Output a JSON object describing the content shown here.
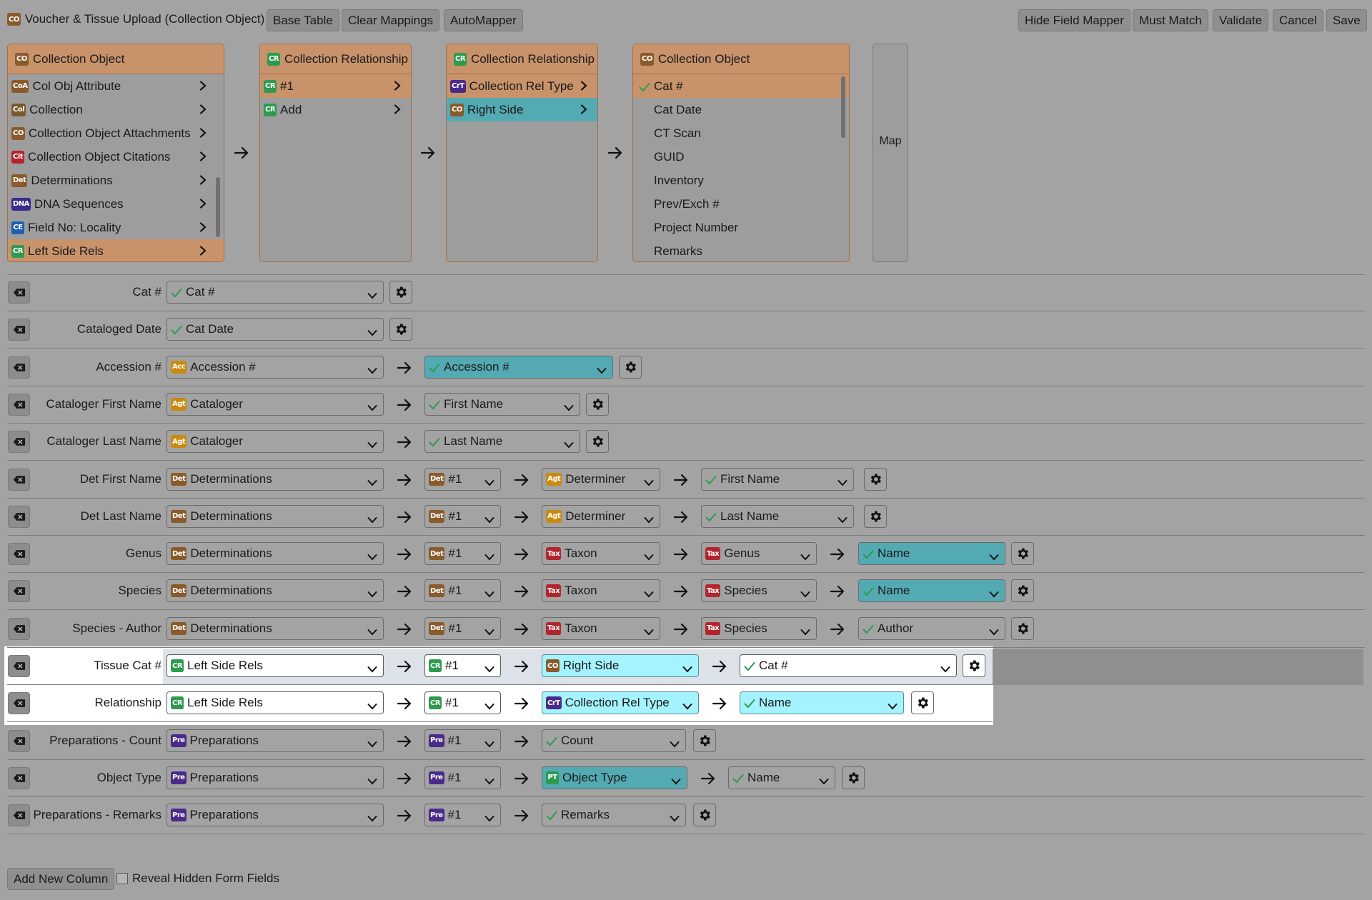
{
  "header": {
    "title": "Voucher & Tissue Upload (Collection Object)",
    "title_badge": "CO",
    "buttons_left": [
      "Base Table",
      "Clear Mappings",
      "AutoMapper"
    ],
    "buttons_right": [
      "Hide Field Mapper",
      "Must Match",
      "Validate",
      "Cancel",
      "Save"
    ]
  },
  "panels": [
    {
      "title": "Collection Object",
      "badge": "CO",
      "items": [
        {
          "badge": "CoA",
          "label": "Col Obj Attribute"
        },
        {
          "badge": "Col",
          "label": "Collection"
        },
        {
          "badge": "CO",
          "label": "Collection Object Attachments"
        },
        {
          "badge": "Cit",
          "label": "Collection Object Citations"
        },
        {
          "badge": "Det",
          "label": "Determinations"
        },
        {
          "badge": "DNA",
          "label": "DNA Sequences"
        },
        {
          "badge": "CE",
          "label": "Field No: Locality"
        },
        {
          "badge": "CR",
          "label": "Left Side Rels"
        }
      ]
    },
    {
      "title": "Collection Relationship",
      "badge": "CR",
      "items": [
        {
          "badge": "CR",
          "label": "#1"
        },
        {
          "badge": "CR",
          "label": "Add"
        }
      ]
    },
    {
      "title": "Collection Relationship",
      "badge": "CR",
      "items": [
        {
          "badge": "CrT",
          "label": "Collection Rel Type"
        },
        {
          "badge": "CO",
          "label": "Right Side"
        }
      ]
    },
    {
      "title": "Collection Object",
      "badge": "CO",
      "items": [
        {
          "label": "Cat #"
        },
        {
          "label": "Cat Date"
        },
        {
          "label": "CT Scan"
        },
        {
          "label": "GUID"
        },
        {
          "label": "Inventory"
        },
        {
          "label": "Prev/Exch #"
        },
        {
          "label": "Project Number"
        },
        {
          "label": "Remarks"
        }
      ]
    }
  ],
  "map_button": "Map",
  "rows": [
    {
      "label": "Cat #",
      "cells": [
        {
          "badge": "",
          "text": "Cat #",
          "check": true
        }
      ]
    },
    {
      "label": "Cataloged Date",
      "cells": [
        {
          "badge": "",
          "text": "Cat Date",
          "check": true
        }
      ]
    },
    {
      "label": "Accession #",
      "cells": [
        {
          "badge": "Acc",
          "text": "Accession #"
        },
        {
          "text": "Accession #",
          "check": true
        }
      ]
    },
    {
      "label": "Cataloger First Name",
      "cells": [
        {
          "badge": "Agt",
          "text": "Cataloger"
        },
        {
          "text": "First Name",
          "check": true
        }
      ]
    },
    {
      "label": "Cataloger Last Name",
      "cells": [
        {
          "badge": "Agt",
          "text": "Cataloger"
        },
        {
          "text": "Last Name",
          "check": true
        }
      ]
    },
    {
      "label": "Det First Name",
      "cells": [
        {
          "badge": "Det",
          "text": "Determinations"
        },
        {
          "badge": "Det",
          "text": "#1"
        },
        {
          "badge": "Agt",
          "text": "Determiner"
        },
        {
          "text": "First Name",
          "check": true
        }
      ]
    },
    {
      "label": "Det Last Name",
      "cells": [
        {
          "badge": "Det",
          "text": "Determinations"
        },
        {
          "badge": "Det",
          "text": "#1"
        },
        {
          "badge": "Agt",
          "text": "Determiner"
        },
        {
          "text": "Last Name",
          "check": true
        }
      ]
    },
    {
      "label": "Genus",
      "cells": [
        {
          "badge": "Det",
          "text": "Determinations"
        },
        {
          "badge": "Det",
          "text": "#1"
        },
        {
          "badge": "Tax",
          "text": "Taxon"
        },
        {
          "badge": "Tax",
          "text": "Genus"
        },
        {
          "text": "Name",
          "check": true
        }
      ]
    },
    {
      "label": "Species",
      "cells": [
        {
          "badge": "Det",
          "text": "Determinations"
        },
        {
          "badge": "Det",
          "text": "#1"
        },
        {
          "badge": "Tax",
          "text": "Taxon"
        },
        {
          "badge": "Tax",
          "text": "Species"
        },
        {
          "text": "Name",
          "check": true
        }
      ]
    },
    {
      "label": "Species - Author",
      "cells": [
        {
          "badge": "Det",
          "text": "Determinations"
        },
        {
          "badge": "Det",
          "text": "#1"
        },
        {
          "badge": "Tax",
          "text": "Taxon"
        },
        {
          "badge": "Tax",
          "text": "Species"
        },
        {
          "text": "Author",
          "check": true
        }
      ]
    },
    {
      "label": "Tissue Cat #",
      "cells": [
        {
          "badge": "CR",
          "text": "Left Side Rels"
        },
        {
          "badge": "CR",
          "text": "#1"
        },
        {
          "badge": "CO",
          "text": "Right Side"
        },
        {
          "text": "Cat #",
          "check": true
        }
      ]
    },
    {
      "label": "Relationship",
      "cells": [
        {
          "badge": "CR",
          "text": "Left Side Rels"
        },
        {
          "badge": "CR",
          "text": "#1"
        },
        {
          "badge": "CrT",
          "text": "Collection Rel Type"
        },
        {
          "text": "Name",
          "check": true
        }
      ]
    },
    {
      "label": "Preparations - Count",
      "cells": [
        {
          "badge": "Pre",
          "text": "Preparations"
        },
        {
          "badge": "Pre",
          "text": "#1"
        },
        {
          "text": "Count",
          "check": true
        }
      ]
    },
    {
      "label": "Object Type",
      "cells": [
        {
          "badge": "Pre",
          "text": "Preparations"
        },
        {
          "badge": "Pre",
          "text": "#1"
        },
        {
          "badge": "PT",
          "text": "Object Type"
        },
        {
          "text": "Name",
          "check": true
        }
      ]
    },
    {
      "label": "Preparations - Remarks",
      "cells": [
        {
          "badge": "Pre",
          "text": "Preparations"
        },
        {
          "badge": "Pre",
          "text": "#1"
        },
        {
          "text": "Remarks",
          "check": true
        }
      ]
    }
  ],
  "footer": {
    "add_column": "Add New Column",
    "reveal_hidden": "Reveal Hidden Form Fields"
  },
  "badge_colors": {
    "CO": "#8a5a2b",
    "CoA": "#8a5a2b",
    "Col": "#7a5a2b",
    "Cit": "#b3242c",
    "Det": "#8a5a2b",
    "DNA": "#3b2a8a",
    "CE": "#1f5fb0",
    "CR": "#2e9a4e",
    "CrT": "#4a2a8a",
    "Acc": "#c98a10",
    "Agt": "#c98a10",
    "Tax": "#b3242c",
    "Pre": "#4a2a8a",
    "PT": "#2e9a4e"
  },
  "check_color": "#2e9a4e"
}
